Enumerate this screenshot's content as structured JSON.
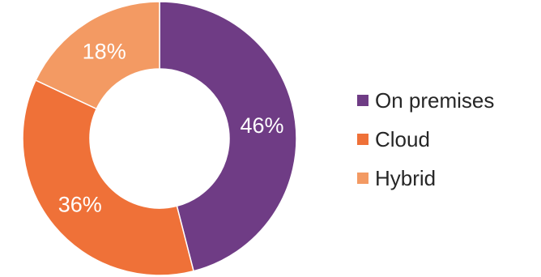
{
  "chart_data": {
    "type": "pie",
    "donut": true,
    "categories": [
      "On premises",
      "Cloud",
      "Hybrid"
    ],
    "values": [
      46,
      36,
      18
    ],
    "value_labels": [
      "46%",
      "36%",
      "18%"
    ],
    "colors": [
      "#6f3c85",
      "#ef7138",
      "#f39a63"
    ],
    "start_angle_deg": 0,
    "direction": "clockwise",
    "legend_position": "right",
    "title": ""
  }
}
